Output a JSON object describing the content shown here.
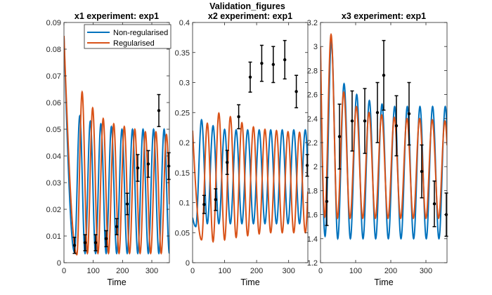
{
  "figure": {
    "suptitle": "Validation_figures"
  },
  "colors": {
    "non_regularised": "#0072BD",
    "regularised": "#D95319",
    "data": "#000000",
    "axes": "#262626"
  },
  "chart_data": [
    {
      "type": "line",
      "title": "x1 experiment: exp1",
      "xlabel": "Time",
      "ylabel": "",
      "xlim": [
        0,
        360
      ],
      "ylim": [
        0,
        0.09
      ],
      "xticks": [
        "0",
        "100",
        "200",
        "300"
      ],
      "yticks": [
        "0",
        "0.01",
        "0.02",
        "0.03",
        "0.04",
        "0.05",
        "0.06",
        "0.07",
        "0.08",
        "0.09"
      ],
      "grid": false,
      "legend": {
        "placement": "top-right",
        "entries": [
          "Non-regularised",
          "Regularised"
        ]
      },
      "series": [
        {
          "name": "Non-regularised",
          "start": 0.085,
          "period": 36,
          "phase": 36,
          "troughs": [
            0.004,
            0.0035,
            0.0035,
            0.0035,
            0.0035,
            0.0035,
            0.0035,
            0.0035,
            0.0035,
            0.0035,
            0.0035
          ],
          "peaks": [
            0.055,
            0.053,
            0.052,
            0.051,
            0.05,
            0.05,
            0.05,
            0.05,
            0.05,
            0.05
          ]
        },
        {
          "name": "Regularised",
          "start": 0.085,
          "period": 36,
          "phase": 44,
          "troughs": [
            0.003,
            0.0035,
            0.0035,
            0.0035,
            0.0035,
            0.0035,
            0.0035,
            0.0035,
            0.0035,
            0.0035,
            0.0035
          ],
          "peaks": [
            0.064,
            0.058,
            0.054,
            0.052,
            0.051,
            0.05,
            0.049,
            0.049,
            0.048,
            0.048
          ]
        }
      ],
      "observations": [
        {
          "x": 36,
          "y": 0.0065,
          "err": 0.003
        },
        {
          "x": 72,
          "y": 0.0075,
          "err": 0.003
        },
        {
          "x": 108,
          "y": 0.0075,
          "err": 0.003
        },
        {
          "x": 144,
          "y": 0.009,
          "err": 0.003
        },
        {
          "x": 180,
          "y": 0.0135,
          "err": 0.003
        },
        {
          "x": 216,
          "y": 0.022,
          "err": 0.004
        },
        {
          "x": 252,
          "y": 0.0355,
          "err": 0.005
        },
        {
          "x": 288,
          "y": 0.037,
          "err": 0.005
        },
        {
          "x": 324,
          "y": 0.057,
          "err": 0.006
        },
        {
          "x": 358,
          "y": 0.0362,
          "err": 0.005
        }
      ]
    },
    {
      "type": "line",
      "title": "x2 experiment: exp1",
      "xlabel": "Time",
      "ylabel": "",
      "xlim": [
        0,
        360
      ],
      "ylim": [
        0,
        0.4
      ],
      "xticks": [
        "0",
        "100",
        "200",
        "300"
      ],
      "yticks": [
        "0",
        "0.05",
        "0.1",
        "0.15",
        "0.2",
        "0.25",
        "0.3",
        "0.35",
        "0.4"
      ],
      "grid": false,
      "series": [
        {
          "name": "Non-regularised",
          "start": 0.075,
          "period": 36,
          "phase": 10,
          "troughs": [
            0.06,
            0.065,
            0.065,
            0.065,
            0.065,
            0.065,
            0.065,
            0.065,
            0.065,
            0.065,
            0.065
          ],
          "peaks": [
            0.238,
            0.228,
            0.222,
            0.221,
            0.221,
            0.221,
            0.221,
            0.221,
            0.221,
            0.221
          ]
        },
        {
          "name": "Regularised",
          "start": 0.22,
          "period": 36,
          "phase": 28,
          "troughs": [
            0.038,
            0.035,
            0.038,
            0.042,
            0.045,
            0.048,
            0.05,
            0.05,
            0.05,
            0.05,
            0.05
          ],
          "peaks": [
            0.232,
            0.249,
            0.243,
            0.233,
            0.226,
            0.222,
            0.22,
            0.218,
            0.217,
            0.216
          ]
        }
      ],
      "observations": [
        {
          "x": 36,
          "y": 0.097,
          "err": 0.015
        },
        {
          "x": 72,
          "y": 0.105,
          "err": 0.018
        },
        {
          "x": 108,
          "y": 0.167,
          "err": 0.02
        },
        {
          "x": 144,
          "y": 0.243,
          "err": 0.02
        },
        {
          "x": 180,
          "y": 0.309,
          "err": 0.025
        },
        {
          "x": 216,
          "y": 0.332,
          "err": 0.03
        },
        {
          "x": 252,
          "y": 0.33,
          "err": 0.03
        },
        {
          "x": 288,
          "y": 0.338,
          "err": 0.032
        },
        {
          "x": 324,
          "y": 0.285,
          "err": 0.027
        },
        {
          "x": 358,
          "y": 0.162,
          "err": 0.018
        }
      ]
    },
    {
      "type": "line",
      "title": "x3 experiment: exp1",
      "xlabel": "Time",
      "ylabel": "",
      "xlim": [
        0,
        360
      ],
      "ylim": [
        1.2,
        3.2
      ],
      "xticks": [
        "0",
        "100",
        "200",
        "300"
      ],
      "yticks": [
        "1.2",
        "1.4",
        "1.6",
        "1.8",
        "2",
        "2.2",
        "2.4",
        "2.6",
        "2.8",
        "3",
        "3.2"
      ],
      "grid": false,
      "series": [
        {
          "name": "Non-regularised",
          "start": 2.9,
          "period": 36,
          "phase": 13,
          "troughs": [
            1.42,
            1.4,
            1.4,
            1.4,
            1.4,
            1.4,
            1.4,
            1.4,
            1.4,
            1.4,
            1.4
          ],
          "peaks": [
            3.04,
            2.69,
            2.6,
            2.55,
            2.52,
            2.5,
            2.5,
            2.5,
            2.5,
            2.5
          ]
        },
        {
          "name": "Regularised",
          "start": 3.0,
          "period": 36,
          "phase": 12,
          "troughs": [
            1.58,
            1.57,
            1.57,
            1.57,
            1.57,
            1.57,
            1.57,
            1.57,
            1.57,
            1.57,
            1.57
          ],
          "peaks": [
            3.1,
            2.62,
            2.5,
            2.45,
            2.43,
            2.41,
            2.4,
            2.4,
            2.39,
            2.38
          ]
        }
      ],
      "observations": [
        {
          "x": 18,
          "y": 1.71,
          "err": 0.2
        },
        {
          "x": 54,
          "y": 2.25,
          "err": 0.27
        },
        {
          "x": 90,
          "y": 2.38,
          "err": 0.25
        },
        {
          "x": 126,
          "y": 2.38,
          "err": 0.27
        },
        {
          "x": 162,
          "y": 2.45,
          "err": 0.25
        },
        {
          "x": 180,
          "y": 2.76,
          "err": 0.29
        },
        {
          "x": 216,
          "y": 2.34,
          "err": 0.25
        },
        {
          "x": 252,
          "y": 2.44,
          "err": 0.26
        },
        {
          "x": 288,
          "y": 1.96,
          "err": 0.22
        },
        {
          "x": 324,
          "y": 1.69,
          "err": 0.19
        },
        {
          "x": 358,
          "y": 1.6,
          "err": 0.18
        }
      ]
    }
  ]
}
